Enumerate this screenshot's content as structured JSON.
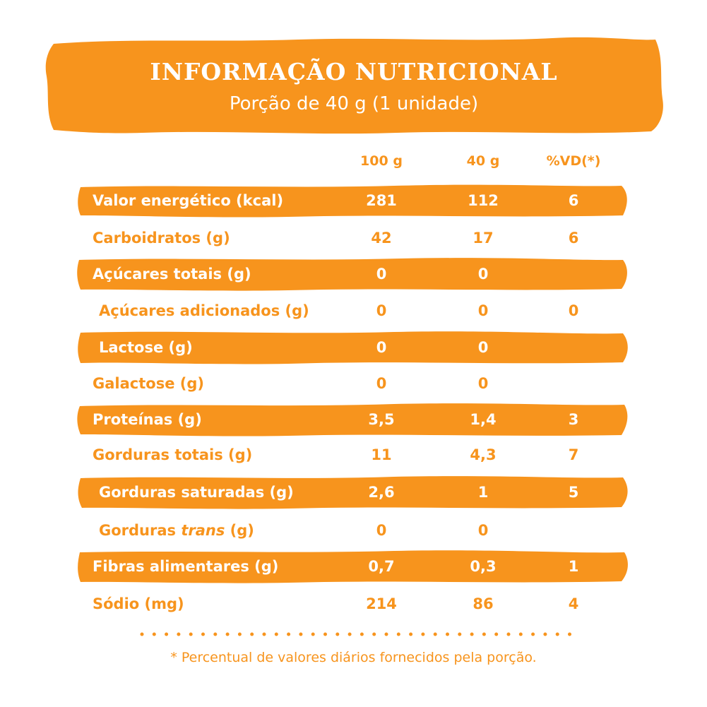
{
  "header": {
    "title": "INFORMAÇÃO NUTRICIONAL",
    "subtitle": "Porção de 40 g (1 unidade)"
  },
  "columns": {
    "per100": "100 g",
    "perPortion": "40 g",
    "vd": "%VD(*)"
  },
  "rows": [
    {
      "label": "Valor energético (kcal)",
      "v100": "281",
      "vPortion": "112",
      "vd": "6",
      "highlight": true
    },
    {
      "label": "Carboidratos (g)",
      "v100": "42",
      "vPortion": "17",
      "vd": "6",
      "highlight": false
    },
    {
      "label": "Açúcares totais (g)",
      "v100": "0",
      "vPortion": "0",
      "vd": "",
      "highlight": true
    },
    {
      "label": "Açúcares adicionados (g)",
      "v100": "0",
      "vPortion": "0",
      "vd": "0",
      "highlight": false
    },
    {
      "label": "Lactose (g)",
      "v100": "0",
      "vPortion": "0",
      "vd": "",
      "highlight": true
    },
    {
      "label": "Galactose (g)",
      "v100": "0",
      "vPortion": "0",
      "vd": "",
      "highlight": false
    },
    {
      "label": "Proteínas (g)",
      "v100": "3,5",
      "vPortion": "1,4",
      "vd": "3",
      "highlight": true
    },
    {
      "label": "Gorduras totais (g)",
      "v100": "11",
      "vPortion": "4,3",
      "vd": "7",
      "highlight": false
    },
    {
      "label": "Gorduras saturadas (g)",
      "v100": "2,6",
      "vPortion": "1",
      "vd": "5",
      "highlight": true
    },
    {
      "label_pre": "Gorduras ",
      "label_em": "trans",
      "label_post": " (g)",
      "v100": "0",
      "vPortion": "0",
      "vd": "",
      "highlight": false
    },
    {
      "label": "Fibras alimentares (g)",
      "v100": "0,7",
      "vPortion": "0,3",
      "vd": "1",
      "highlight": true
    },
    {
      "label": "Sódio (mg)",
      "v100": "214",
      "vPortion": "86",
      "vd": "4",
      "highlight": false
    }
  ],
  "footnote": "* Percentual de valores diários fornecidos pela porção.",
  "colors": {
    "accent": "#f7941d",
    "text_on_accent": "#ffffff"
  }
}
